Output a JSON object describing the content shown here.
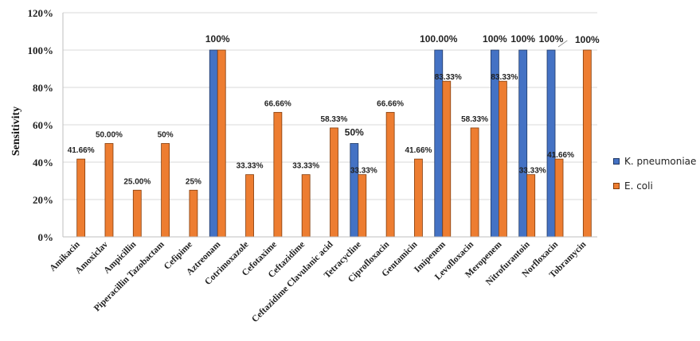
{
  "chart_data": {
    "type": "bar",
    "title": "",
    "xlabel": "",
    "ylabel": "Sensitivity",
    "ylim": [
      0,
      120
    ],
    "yticks": [
      "0%",
      "20%",
      "40%",
      "60%",
      "80%",
      "100%",
      "120%"
    ],
    "grid": true,
    "legend_position": "right",
    "categories": [
      "Amikacin",
      "Amoxiclav",
      "Ampicillin",
      "Piperacillin Tazobactam",
      "Cefipime",
      "Aztreonam",
      "Cotrimoxazole",
      "Cefotaxime",
      "Ceftazidime",
      "Ceftazidime Clavulanic acid",
      "Tetracycline",
      "Ciprofloxacin",
      "Gentamicin",
      "Imipenem",
      "Levofloxacin",
      "Meropenem",
      "Nitrofurantoin",
      "Norfloxacin",
      "Tobramycin"
    ],
    "series": [
      {
        "name": "K. pneumoniae",
        "color": "#4472C4",
        "values": [
          null,
          null,
          null,
          null,
          null,
          100,
          null,
          null,
          null,
          null,
          50,
          null,
          null,
          100,
          null,
          100,
          100,
          100,
          null
        ],
        "labels": [
          "",
          "",
          "",
          "",
          "",
          "100%",
          "",
          "",
          "",
          "",
          "50%",
          "",
          "",
          "100.00%",
          "",
          "100%",
          "100%",
          "100%",
          ""
        ]
      },
      {
        "name": "E. coli",
        "color": "#ED7D31",
        "values": [
          41.66,
          50,
          25,
          50,
          25,
          100,
          33.33,
          66.66,
          33.33,
          58.33,
          33.33,
          66.66,
          41.66,
          83.33,
          58.33,
          83.33,
          33.33,
          41.66,
          100
        ],
        "labels": [
          "41.66%",
          "50.00%",
          "25.00%",
          "50%",
          "25%",
          "",
          "33.33%",
          "66.66%",
          "33.33%",
          "58.33%",
          "33.33%",
          "66.66%",
          "41.66%",
          "83.33%",
          "58.33%",
          "83.33%",
          "33.33%",
          "41.66%",
          "100%"
        ]
      }
    ]
  }
}
